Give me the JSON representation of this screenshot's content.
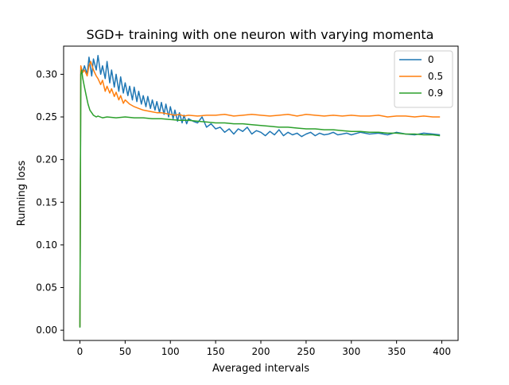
{
  "chart_data": {
    "type": "line",
    "title": "SGD+ training with one neuron with varying momenta",
    "xlabel": "Averaged intervals",
    "ylabel": "Running loss",
    "xlim": [
      -18,
      418
    ],
    "ylim": [
      -0.012,
      0.333
    ],
    "xticks": [
      0,
      50,
      100,
      150,
      200,
      250,
      300,
      350,
      400
    ],
    "yticks": [
      0.0,
      0.05,
      0.1,
      0.15,
      0.2,
      0.25,
      0.3
    ],
    "ytick_labels": [
      "0.00",
      "0.05",
      "0.10",
      "0.15",
      "0.20",
      "0.25",
      "0.30"
    ],
    "grid": false,
    "legend": {
      "position": "top-right"
    },
    "series": [
      {
        "name": "0",
        "color": "#1f77b4",
        "x": [
          0,
          1,
          3,
          5,
          8,
          10,
          13,
          15,
          18,
          20,
          23,
          25,
          28,
          30,
          33,
          35,
          38,
          40,
          43,
          45,
          48,
          50,
          53,
          55,
          58,
          60,
          63,
          65,
          68,
          70,
          73,
          75,
          78,
          80,
          83,
          85,
          88,
          90,
          93,
          95,
          98,
          100,
          103,
          105,
          108,
          110,
          113,
          115,
          118,
          120,
          125,
          130,
          135,
          140,
          145,
          150,
          155,
          160,
          165,
          170,
          175,
          180,
          185,
          190,
          195,
          200,
          205,
          210,
          215,
          220,
          225,
          230,
          235,
          240,
          245,
          250,
          255,
          260,
          265,
          270,
          275,
          280,
          285,
          290,
          295,
          300,
          310,
          320,
          330,
          340,
          350,
          360,
          370,
          380,
          390,
          398
        ],
        "y": [
          0.004,
          0.305,
          0.302,
          0.31,
          0.3,
          0.32,
          0.298,
          0.318,
          0.305,
          0.322,
          0.3,
          0.31,
          0.295,
          0.315,
          0.29,
          0.305,
          0.285,
          0.3,
          0.28,
          0.297,
          0.278,
          0.29,
          0.275,
          0.286,
          0.27,
          0.285,
          0.268,
          0.28,
          0.265,
          0.275,
          0.262,
          0.274,
          0.26,
          0.27,
          0.258,
          0.268,
          0.255,
          0.267,
          0.253,
          0.265,
          0.25,
          0.262,
          0.248,
          0.258,
          0.245,
          0.255,
          0.243,
          0.252,
          0.242,
          0.248,
          0.245,
          0.243,
          0.25,
          0.238,
          0.242,
          0.236,
          0.238,
          0.232,
          0.236,
          0.23,
          0.236,
          0.233,
          0.238,
          0.23,
          0.234,
          0.232,
          0.228,
          0.233,
          0.229,
          0.235,
          0.228,
          0.232,
          0.229,
          0.231,
          0.227,
          0.23,
          0.232,
          0.228,
          0.231,
          0.229,
          0.23,
          0.232,
          0.229,
          0.23,
          0.231,
          0.229,
          0.232,
          0.23,
          0.231,
          0.229,
          0.232,
          0.23,
          0.229,
          0.231,
          0.23,
          0.229
        ]
      },
      {
        "name": "0.5",
        "color": "#ff7f0e",
        "x": [
          0,
          1,
          3,
          5,
          8,
          10,
          12,
          15,
          18,
          20,
          23,
          25,
          28,
          30,
          33,
          35,
          38,
          40,
          43,
          45,
          48,
          50,
          55,
          60,
          65,
          70,
          75,
          80,
          85,
          90,
          95,
          100,
          105,
          110,
          115,
          120,
          130,
          140,
          150,
          160,
          170,
          180,
          190,
          200,
          210,
          220,
          230,
          240,
          250,
          260,
          270,
          280,
          290,
          300,
          310,
          320,
          330,
          340,
          350,
          360,
          370,
          380,
          390,
          398
        ],
        "y": [
          0.004,
          0.31,
          0.302,
          0.305,
          0.298,
          0.31,
          0.315,
          0.305,
          0.298,
          0.295,
          0.288,
          0.293,
          0.28,
          0.286,
          0.278,
          0.283,
          0.274,
          0.279,
          0.27,
          0.275,
          0.266,
          0.27,
          0.265,
          0.262,
          0.26,
          0.258,
          0.257,
          0.256,
          0.255,
          0.255,
          0.254,
          0.253,
          0.252,
          0.253,
          0.251,
          0.252,
          0.251,
          0.252,
          0.252,
          0.253,
          0.251,
          0.252,
          0.253,
          0.252,
          0.251,
          0.252,
          0.253,
          0.251,
          0.253,
          0.252,
          0.251,
          0.252,
          0.251,
          0.252,
          0.251,
          0.251,
          0.252,
          0.25,
          0.251,
          0.251,
          0.25,
          0.251,
          0.25,
          0.25
        ]
      },
      {
        "name": "0.9",
        "color": "#2ca02c",
        "x": [
          0,
          1,
          2,
          3,
          5,
          7,
          9,
          11,
          13,
          15,
          18,
          20,
          25,
          30,
          40,
          50,
          60,
          70,
          80,
          90,
          100,
          110,
          120,
          130,
          140,
          150,
          160,
          170,
          180,
          190,
          200,
          210,
          220,
          230,
          240,
          250,
          260,
          270,
          280,
          290,
          300,
          310,
          320,
          330,
          340,
          350,
          360,
          370,
          380,
          390,
          398
        ],
        "y": [
          0.003,
          0.3,
          0.305,
          0.296,
          0.285,
          0.275,
          0.265,
          0.258,
          0.255,
          0.252,
          0.25,
          0.251,
          0.249,
          0.25,
          0.249,
          0.25,
          0.249,
          0.249,
          0.248,
          0.248,
          0.247,
          0.246,
          0.246,
          0.245,
          0.244,
          0.243,
          0.243,
          0.242,
          0.242,
          0.241,
          0.24,
          0.239,
          0.238,
          0.238,
          0.237,
          0.236,
          0.236,
          0.235,
          0.235,
          0.234,
          0.233,
          0.233,
          0.232,
          0.232,
          0.231,
          0.231,
          0.23,
          0.23,
          0.229,
          0.229,
          0.228
        ]
      }
    ]
  }
}
